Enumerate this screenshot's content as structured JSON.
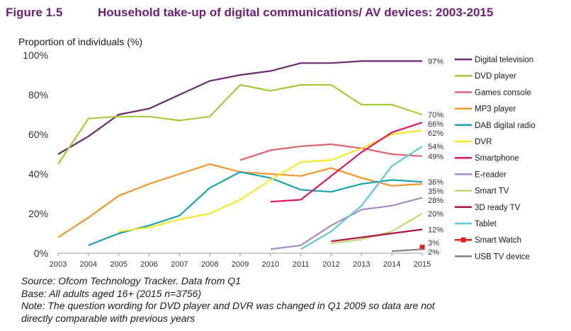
{
  "figure_label": "Figure 1.5",
  "title": "Household take-up of digital communications/ AV devices: 2003-2015",
  "colors": {
    "title": "#6d1f74"
  },
  "notes": {
    "source": "Source: Ofcom Technology Tracker. Data from Q1",
    "base": "Base: All adults aged 16+ (2015 n=3756)",
    "note_line1": "Note: The question wording for DVD player and DVR was changed in Q1 2009 so data are not",
    "note_line2": "directly comparable with previous years"
  },
  "chart_data": {
    "type": "line",
    "ylabel": "Proportion of individuals (%)",
    "xlabel": "",
    "x": [
      2003,
      2004,
      2005,
      2006,
      2007,
      2008,
      2009,
      2010,
      2011,
      2012,
      2013,
      2014,
      2015
    ],
    "ylim": [
      0,
      100
    ],
    "yticks": [
      "0%",
      "20%",
      "40%",
      "60%",
      "80%",
      "100%"
    ],
    "ytick_values": [
      0,
      20,
      40,
      60,
      80,
      100
    ],
    "grid": false,
    "legend": "right",
    "series": [
      {
        "name": "Digital television",
        "color": "#6b2a6e",
        "end_label": "97%",
        "values": [
          50,
          59,
          70,
          73,
          80,
          87,
          90,
          92,
          96,
          96,
          97,
          97,
          97
        ]
      },
      {
        "name": "DVD player",
        "color": "#a6c939",
        "end_label": "70%",
        "values": [
          45,
          68,
          69,
          69,
          67,
          69,
          85,
          82,
          85,
          85,
          75,
          75,
          70
        ]
      },
      {
        "name": "Games console",
        "color": "#e0626f",
        "end_label": "49%",
        "values": [
          null,
          null,
          null,
          null,
          null,
          null,
          47,
          52,
          54,
          55,
          53,
          50,
          49
        ]
      },
      {
        "name": "MP3 player",
        "color": "#f0962b",
        "end_label": "35%",
        "values": [
          8,
          18,
          29,
          35,
          40,
          45,
          41,
          40,
          39,
          43,
          38,
          34,
          35
        ]
      },
      {
        "name": "DAB digital radio",
        "color": "#19a3ad",
        "end_label": "36%",
        "values": [
          null,
          4,
          10,
          14,
          19,
          33,
          41,
          38,
          32,
          31,
          35,
          37,
          36
        ]
      },
      {
        "name": "DVR",
        "color": "#f5e92a",
        "end_label": "62%",
        "values": [
          null,
          null,
          11,
          13,
          17,
          20,
          27,
          37,
          46,
          47,
          53,
          60,
          62
        ]
      },
      {
        "name": "Smartphone",
        "color": "#e0175c",
        "end_label": "66%",
        "values": [
          null,
          null,
          null,
          null,
          null,
          null,
          null,
          26,
          27,
          39,
          51,
          61,
          66
        ]
      },
      {
        "name": "E-reader",
        "color": "#a78bbf",
        "end_label": "28%",
        "values": [
          null,
          null,
          null,
          null,
          null,
          null,
          null,
          2,
          4,
          14,
          22,
          24,
          28
        ]
      },
      {
        "name": "Smart TV",
        "color": "#c0d97a",
        "end_label": "20%",
        "values": [
          null,
          null,
          null,
          null,
          null,
          null,
          null,
          null,
          null,
          5,
          7,
          11,
          20
        ]
      },
      {
        "name": "3D ready TV",
        "color": "#b0143f",
        "end_label": "12%",
        "values": [
          null,
          null,
          null,
          null,
          null,
          null,
          null,
          null,
          null,
          6,
          8,
          10,
          12
        ]
      },
      {
        "name": "Tablet",
        "color": "#5fc8d6",
        "end_label": "54%",
        "values": [
          null,
          null,
          null,
          null,
          null,
          null,
          null,
          null,
          2,
          11,
          24,
          44,
          54
        ]
      },
      {
        "name": "Smart Watch",
        "color": "#e02020",
        "end_label": "3%",
        "marker": "square",
        "values": [
          null,
          null,
          null,
          null,
          null,
          null,
          null,
          null,
          null,
          null,
          null,
          null,
          3
        ]
      },
      {
        "name": "USB TV device",
        "color": "#808080",
        "end_label": "2%",
        "values": [
          null,
          null,
          null,
          null,
          null,
          null,
          null,
          null,
          null,
          null,
          null,
          1,
          2
        ]
      }
    ],
    "end_label_order": [
      "Digital television",
      "DVD player",
      "Smartphone",
      "DVR",
      "Tablet",
      "Games console",
      "DAB digital radio",
      "MP3 player",
      "E-reader",
      "Smart TV",
      "3D ready TV",
      "Smart Watch",
      "USB TV device"
    ]
  }
}
